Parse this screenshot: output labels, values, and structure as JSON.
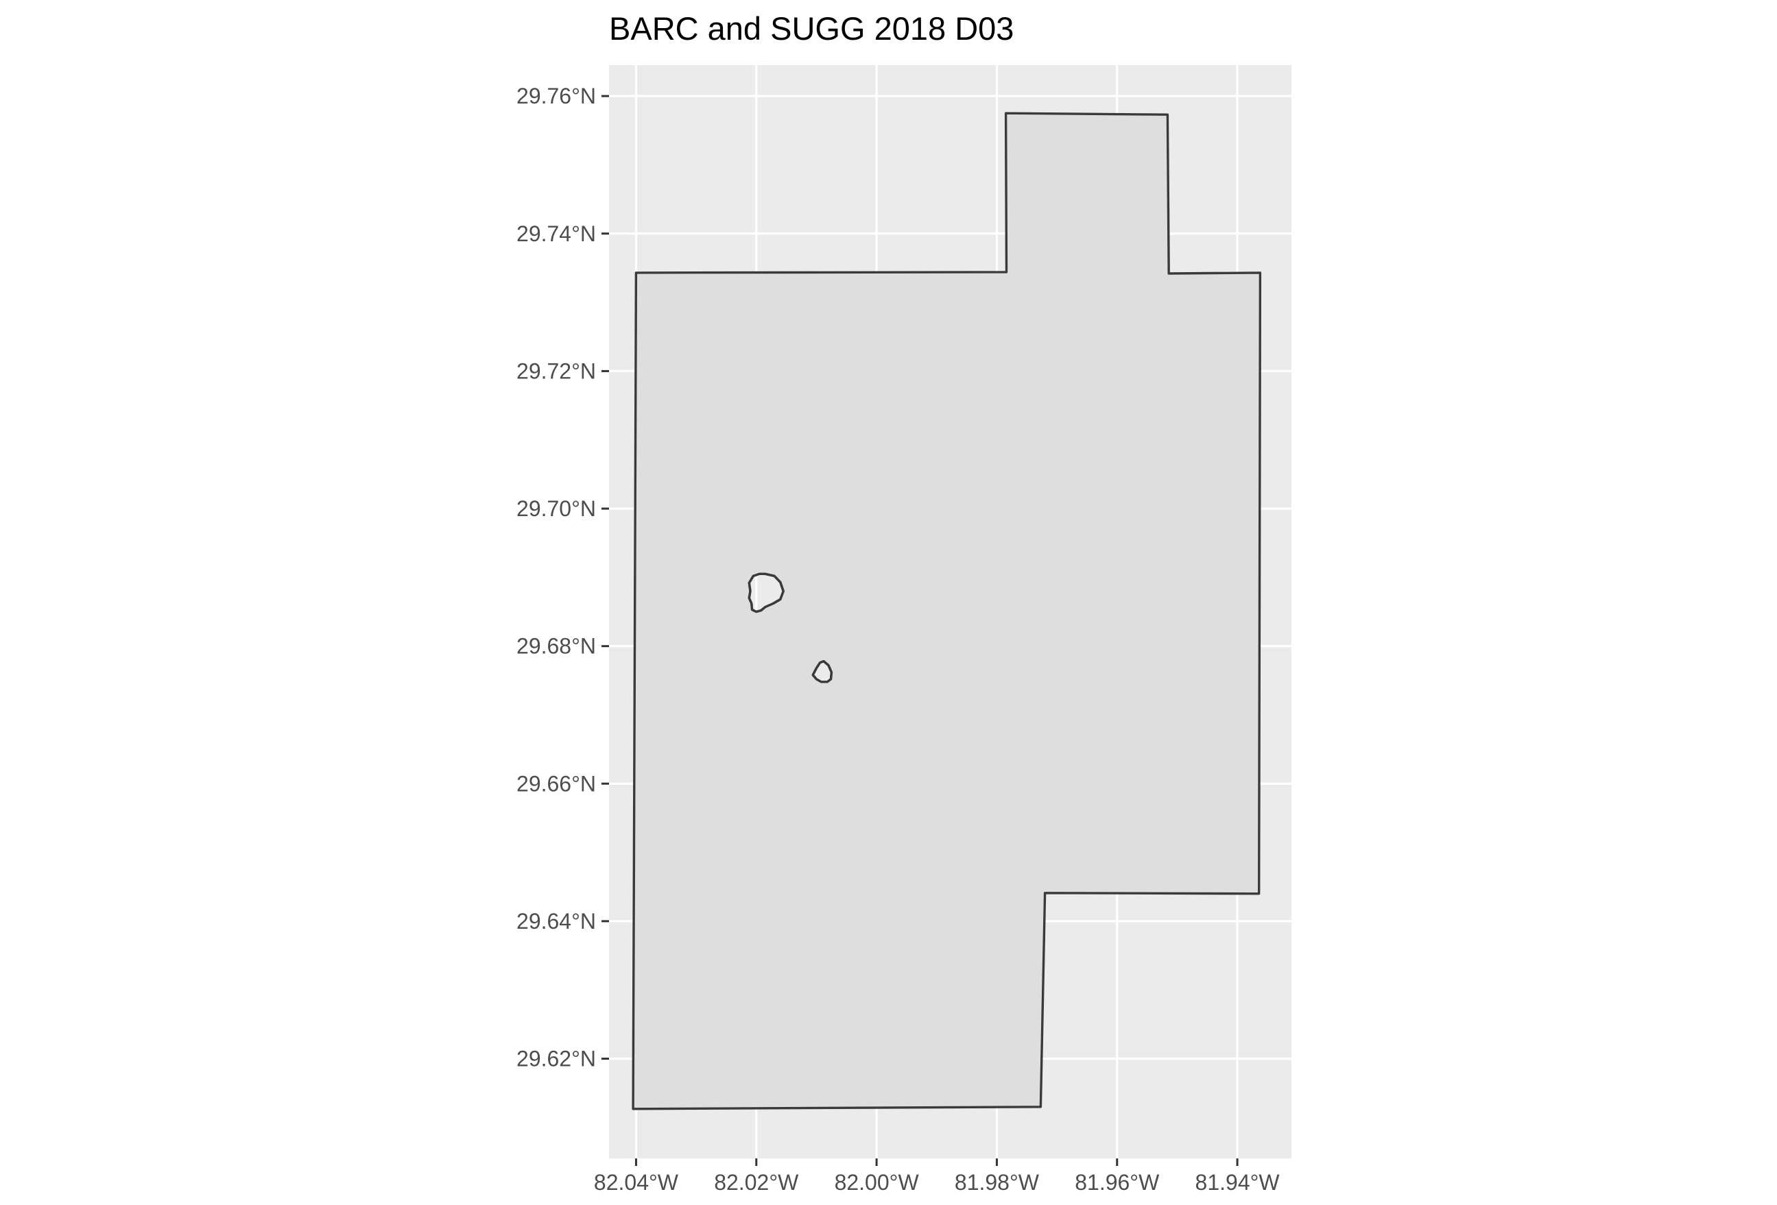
{
  "chart_data": {
    "type": "map",
    "title": "BARC and SUGG 2018 D03",
    "xlabel": "",
    "ylabel": "",
    "xlim": [
      -82.0445,
      -81.931
    ],
    "ylim": [
      29.6055,
      29.7645
    ],
    "x_ticks": [
      {
        "value": -82.04,
        "label": "82.04°W"
      },
      {
        "value": -82.02,
        "label": "82.02°W"
      },
      {
        "value": -82.0,
        "label": "82.00°W"
      },
      {
        "value": -81.98,
        "label": "81.98°W"
      },
      {
        "value": -81.96,
        "label": "81.96°W"
      },
      {
        "value": -81.94,
        "label": "81.94°W"
      }
    ],
    "y_ticks": [
      {
        "value": 29.62,
        "label": "29.62°N"
      },
      {
        "value": 29.64,
        "label": "29.64°N"
      },
      {
        "value": 29.66,
        "label": "29.66°N"
      },
      {
        "value": 29.68,
        "label": "29.68°N"
      },
      {
        "value": 29.7,
        "label": "29.70°N"
      },
      {
        "value": 29.72,
        "label": "29.72°N"
      },
      {
        "value": 29.74,
        "label": "29.74°N"
      },
      {
        "value": 29.76,
        "label": "29.76°N"
      }
    ],
    "grid": true,
    "colors": {
      "panel_background": "#ebebeb",
      "polygon_fill": "#dedede",
      "polygon_stroke": "#3a3a3a",
      "grid": "#ffffff"
    },
    "polygon_outer": [
      [
        -82.04,
        29.7343
      ],
      [
        -81.9784,
        29.7344
      ],
      [
        -81.9785,
        29.7575
      ],
      [
        -81.9516,
        29.7573
      ],
      [
        -81.9514,
        29.7342
      ],
      [
        -81.9362,
        29.7343
      ],
      [
        -81.9364,
        29.644
      ],
      [
        -81.972,
        29.6441
      ],
      [
        -81.9727,
        29.613
      ],
      [
        -82.0405,
        29.6127
      ]
    ],
    "polygon_holes": [
      [
        [
          -82.0185,
          29.6905
        ],
        [
          -82.017,
          29.6902
        ],
        [
          -82.016,
          29.6893
        ],
        [
          -82.0155,
          29.688
        ],
        [
          -82.016,
          29.6868
        ],
        [
          -82.0172,
          29.6862
        ],
        [
          -82.0185,
          29.6857
        ],
        [
          -82.0192,
          29.6852
        ],
        [
          -82.02,
          29.685
        ],
        [
          -82.0207,
          29.6853
        ],
        [
          -82.0208,
          29.6862
        ],
        [
          -82.0212,
          29.687
        ],
        [
          -82.021,
          29.688
        ],
        [
          -82.0212,
          29.6892
        ],
        [
          -82.0205,
          29.6902
        ],
        [
          -82.0195,
          29.6905
        ]
      ],
      [
        [
          -82.0088,
          29.6778
        ],
        [
          -82.008,
          29.6772
        ],
        [
          -82.0075,
          29.6762
        ],
        [
          -82.0076,
          29.6752
        ],
        [
          -82.0082,
          29.6748
        ],
        [
          -82.0092,
          29.6748
        ],
        [
          -82.01,
          29.6752
        ],
        [
          -82.0106,
          29.6758
        ],
        [
          -82.01,
          29.6768
        ],
        [
          -82.0094,
          29.6776
        ]
      ]
    ]
  }
}
